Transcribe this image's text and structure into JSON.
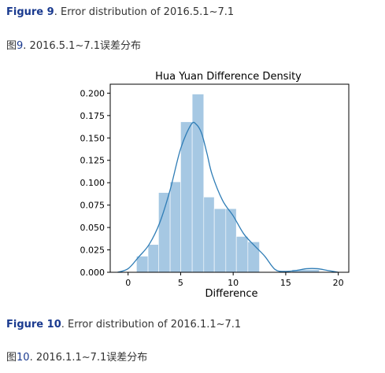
{
  "captions": {
    "fig9": {
      "label": "Figure 9",
      "sep": ".",
      "text": " Error distribution of 2016.5.1~7.1"
    },
    "cn9": {
      "prefix": "图",
      "num": "9",
      "text": ". 2016.5.1~7.1误差分布"
    },
    "fig10": {
      "label": "Figure 10",
      "sep": ".",
      "text": " Error distribution of 2016.1.1~7.1"
    },
    "cn10": {
      "prefix": "图",
      "num": "10",
      "text": ". 2016.1.1~7.1误差分布"
    }
  },
  "chart_data": {
    "type": "bar",
    "title": "Hua Yuan Difference Density",
    "xlabel": "Difference",
    "ylabel": "",
    "xlim": [
      -1.7,
      21.0
    ],
    "ylim": [
      0,
      0.21
    ],
    "xticks": [
      0,
      5,
      10,
      15,
      20
    ],
    "yticks": [
      0.0,
      0.025,
      0.05,
      0.075,
      0.1,
      0.125,
      0.15,
      0.175,
      0.2
    ],
    "xtick_labels": [
      "0",
      "5",
      "10",
      "15",
      "20"
    ],
    "ytick_labels": [
      "0.000",
      "0.025",
      "0.050",
      "0.075",
      "0.100",
      "0.125",
      "0.150",
      "0.175",
      "0.200"
    ],
    "bins": [
      {
        "x0": 0.8,
        "x1": 1.9,
        "value": 0.018
      },
      {
        "x0": 1.9,
        "x1": 2.9,
        "value": 0.031
      },
      {
        "x0": 2.9,
        "x1": 4.0,
        "value": 0.089
      },
      {
        "x0": 4.0,
        "x1": 5.0,
        "value": 0.101
      },
      {
        "x0": 5.0,
        "x1": 6.1,
        "value": 0.168
      },
      {
        "x0": 6.1,
        "x1": 7.2,
        "value": 0.199
      },
      {
        "x0": 7.2,
        "x1": 8.2,
        "value": 0.084
      },
      {
        "x0": 8.2,
        "x1": 9.3,
        "value": 0.071
      },
      {
        "x0": 9.3,
        "x1": 10.3,
        "value": 0.071
      },
      {
        "x0": 10.3,
        "x1": 11.4,
        "value": 0.04
      },
      {
        "x0": 11.4,
        "x1": 12.5,
        "value": 0.034
      },
      {
        "x0": 12.5,
        "x1": 15.6,
        "value": 0.0
      },
      {
        "x0": 15.6,
        "x1": 18.2,
        "value": 0.003
      }
    ],
    "kde": {
      "x": [
        -1.0,
        0.0,
        1.0,
        2.0,
        3.0,
        4.0,
        5.0,
        6.0,
        6.5,
        7.0,
        7.5,
        8.0,
        9.0,
        10.0,
        11.0,
        12.0,
        13.0,
        14.0,
        15.0,
        16.0,
        17.0,
        18.0,
        19.0,
        20.0
      ],
      "y": [
        0.0,
        0.004,
        0.017,
        0.031,
        0.055,
        0.092,
        0.138,
        0.165,
        0.165,
        0.155,
        0.133,
        0.109,
        0.08,
        0.063,
        0.043,
        0.03,
        0.018,
        0.003,
        0.001,
        0.002,
        0.004,
        0.004,
        0.002,
        0.0
      ]
    },
    "colors": {
      "bars": "#a6c8e3",
      "kde": "#2f7db6",
      "frame": "#000000"
    },
    "grid": false
  }
}
